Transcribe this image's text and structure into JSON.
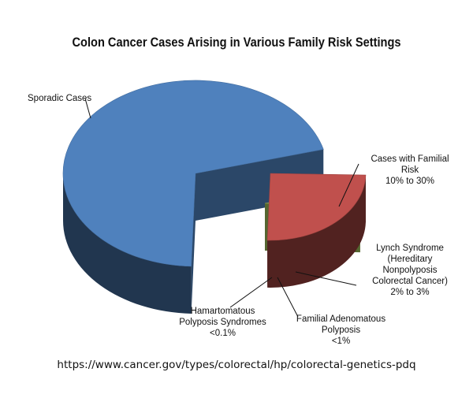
{
  "chart_data": {
    "type": "pie",
    "title": "Colon Cancer Cases Arising in Various Family Risk Settings",
    "slices": [
      {
        "lines": [
          "Sporadic Cases"
        ],
        "value": 70,
        "color": "#4F81BD"
      },
      {
        "lines": [
          "Cases with Familial",
          "Risk",
          "10% to 30%"
        ],
        "value": 25,
        "color": "#C0504D"
      },
      {
        "lines": [
          "Lynch Syndrome",
          "(Hereditary",
          "Nonpolyposis",
          "Colorectal Cancer)",
          "2% to 3%"
        ],
        "value": 3,
        "color": "#9BBB59"
      },
      {
        "lines": [
          "Familial Adenomatous",
          "Polyposis",
          "<1%"
        ],
        "value": 0.8,
        "color": "#8064A2"
      },
      {
        "lines": [
          "Hamartomatous",
          "Polyposis Syndromes",
          "<0.1%"
        ],
        "value": 0.1,
        "color": "#C9A227"
      }
    ]
  },
  "source": {
    "url": "https://www.cancer.gov/types/colorectal/hp/colorectal-genetics-pdq"
  }
}
